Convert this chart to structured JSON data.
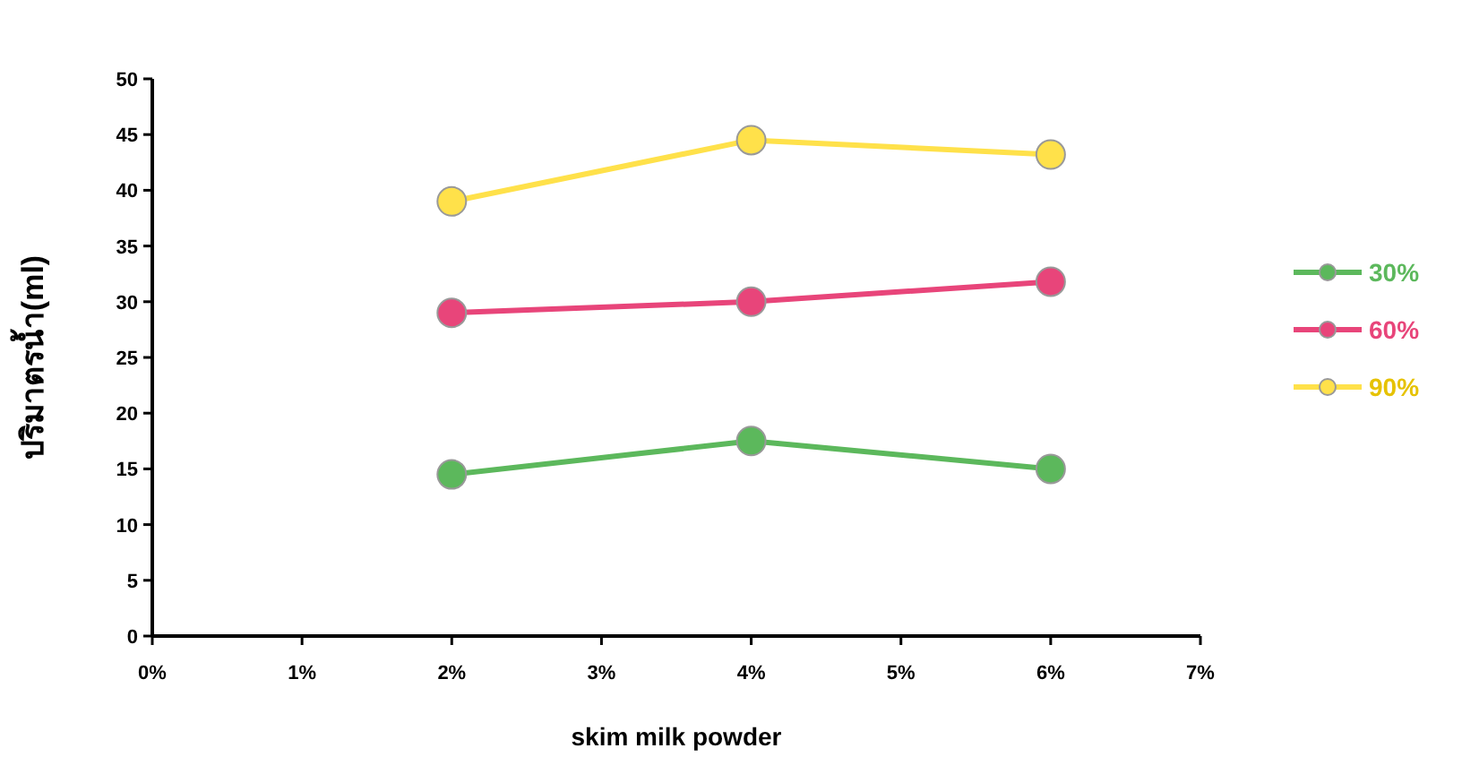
{
  "chart_data": {
    "type": "line",
    "xlabel": "skim milk powder",
    "ylabel": "ปริมาตรน้ำ(ml)",
    "x": [
      2,
      4,
      6
    ],
    "xlim": [
      0,
      7
    ],
    "xticks": [
      {
        "value": 0,
        "label": "0%"
      },
      {
        "value": 1,
        "label": "1%"
      },
      {
        "value": 2,
        "label": "2%"
      },
      {
        "value": 3,
        "label": "3%"
      },
      {
        "value": 4,
        "label": "4%"
      },
      {
        "value": 5,
        "label": "5%"
      },
      {
        "value": 6,
        "label": "6%"
      },
      {
        "value": 7,
        "label": "7%"
      }
    ],
    "ylim": [
      0,
      50
    ],
    "yticks": [
      0,
      5,
      10,
      15,
      20,
      25,
      30,
      35,
      40,
      45,
      50
    ],
    "marker": "circle",
    "line_style": "solid",
    "legend": "right",
    "grid": false,
    "series": [
      {
        "name": "30%",
        "color": "#5cb85c",
        "values": [
          14.5,
          17.5,
          15
        ]
      },
      {
        "name": "60%",
        "color": "#e8457a",
        "values": [
          29,
          30,
          31.8
        ]
      },
      {
        "name": "90%",
        "color": "#ffe14a",
        "values": [
          39,
          44.5,
          43.2
        ]
      }
    ]
  }
}
